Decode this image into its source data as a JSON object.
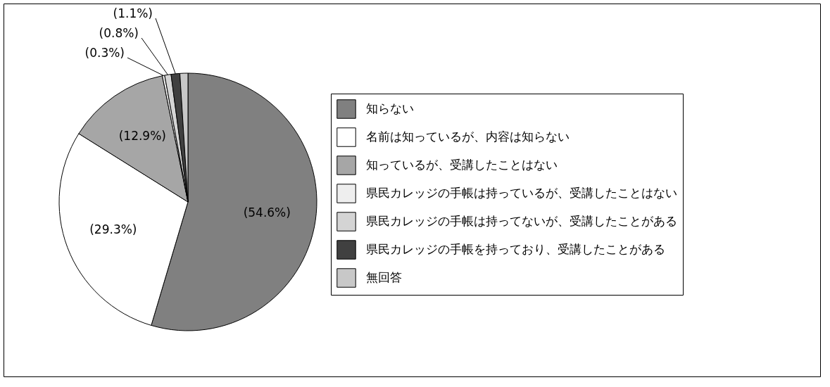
{
  "chart_data": {
    "type": "pie",
    "categories": [
      "知らない",
      "名前は知っているが、内容は知らない",
      "知っているが、受講したことはない",
      "県民カレッジの手帳は持っているが、受講したことはない",
      "県民カレッジの手帳は持ってないが、受講したことがある",
      "県民カレッジの手帳を持っており、受講したことがある",
      "無回答"
    ],
    "values": [
      54.6,
      29.3,
      12.9,
      0.3,
      0.8,
      1.1,
      1.0
    ],
    "colors": [
      "#808080",
      "#ffffff",
      "#a6a6a6",
      "#eeeeee",
      "#d4d4d4",
      "#404040",
      "#c8c8c8"
    ],
    "value_labels": [
      "(54.6%)",
      "(29.3%)",
      "(12.9%)",
      "(0.3%)",
      "(0.8%)",
      "(1.1%)",
      null
    ],
    "legend": "right"
  }
}
